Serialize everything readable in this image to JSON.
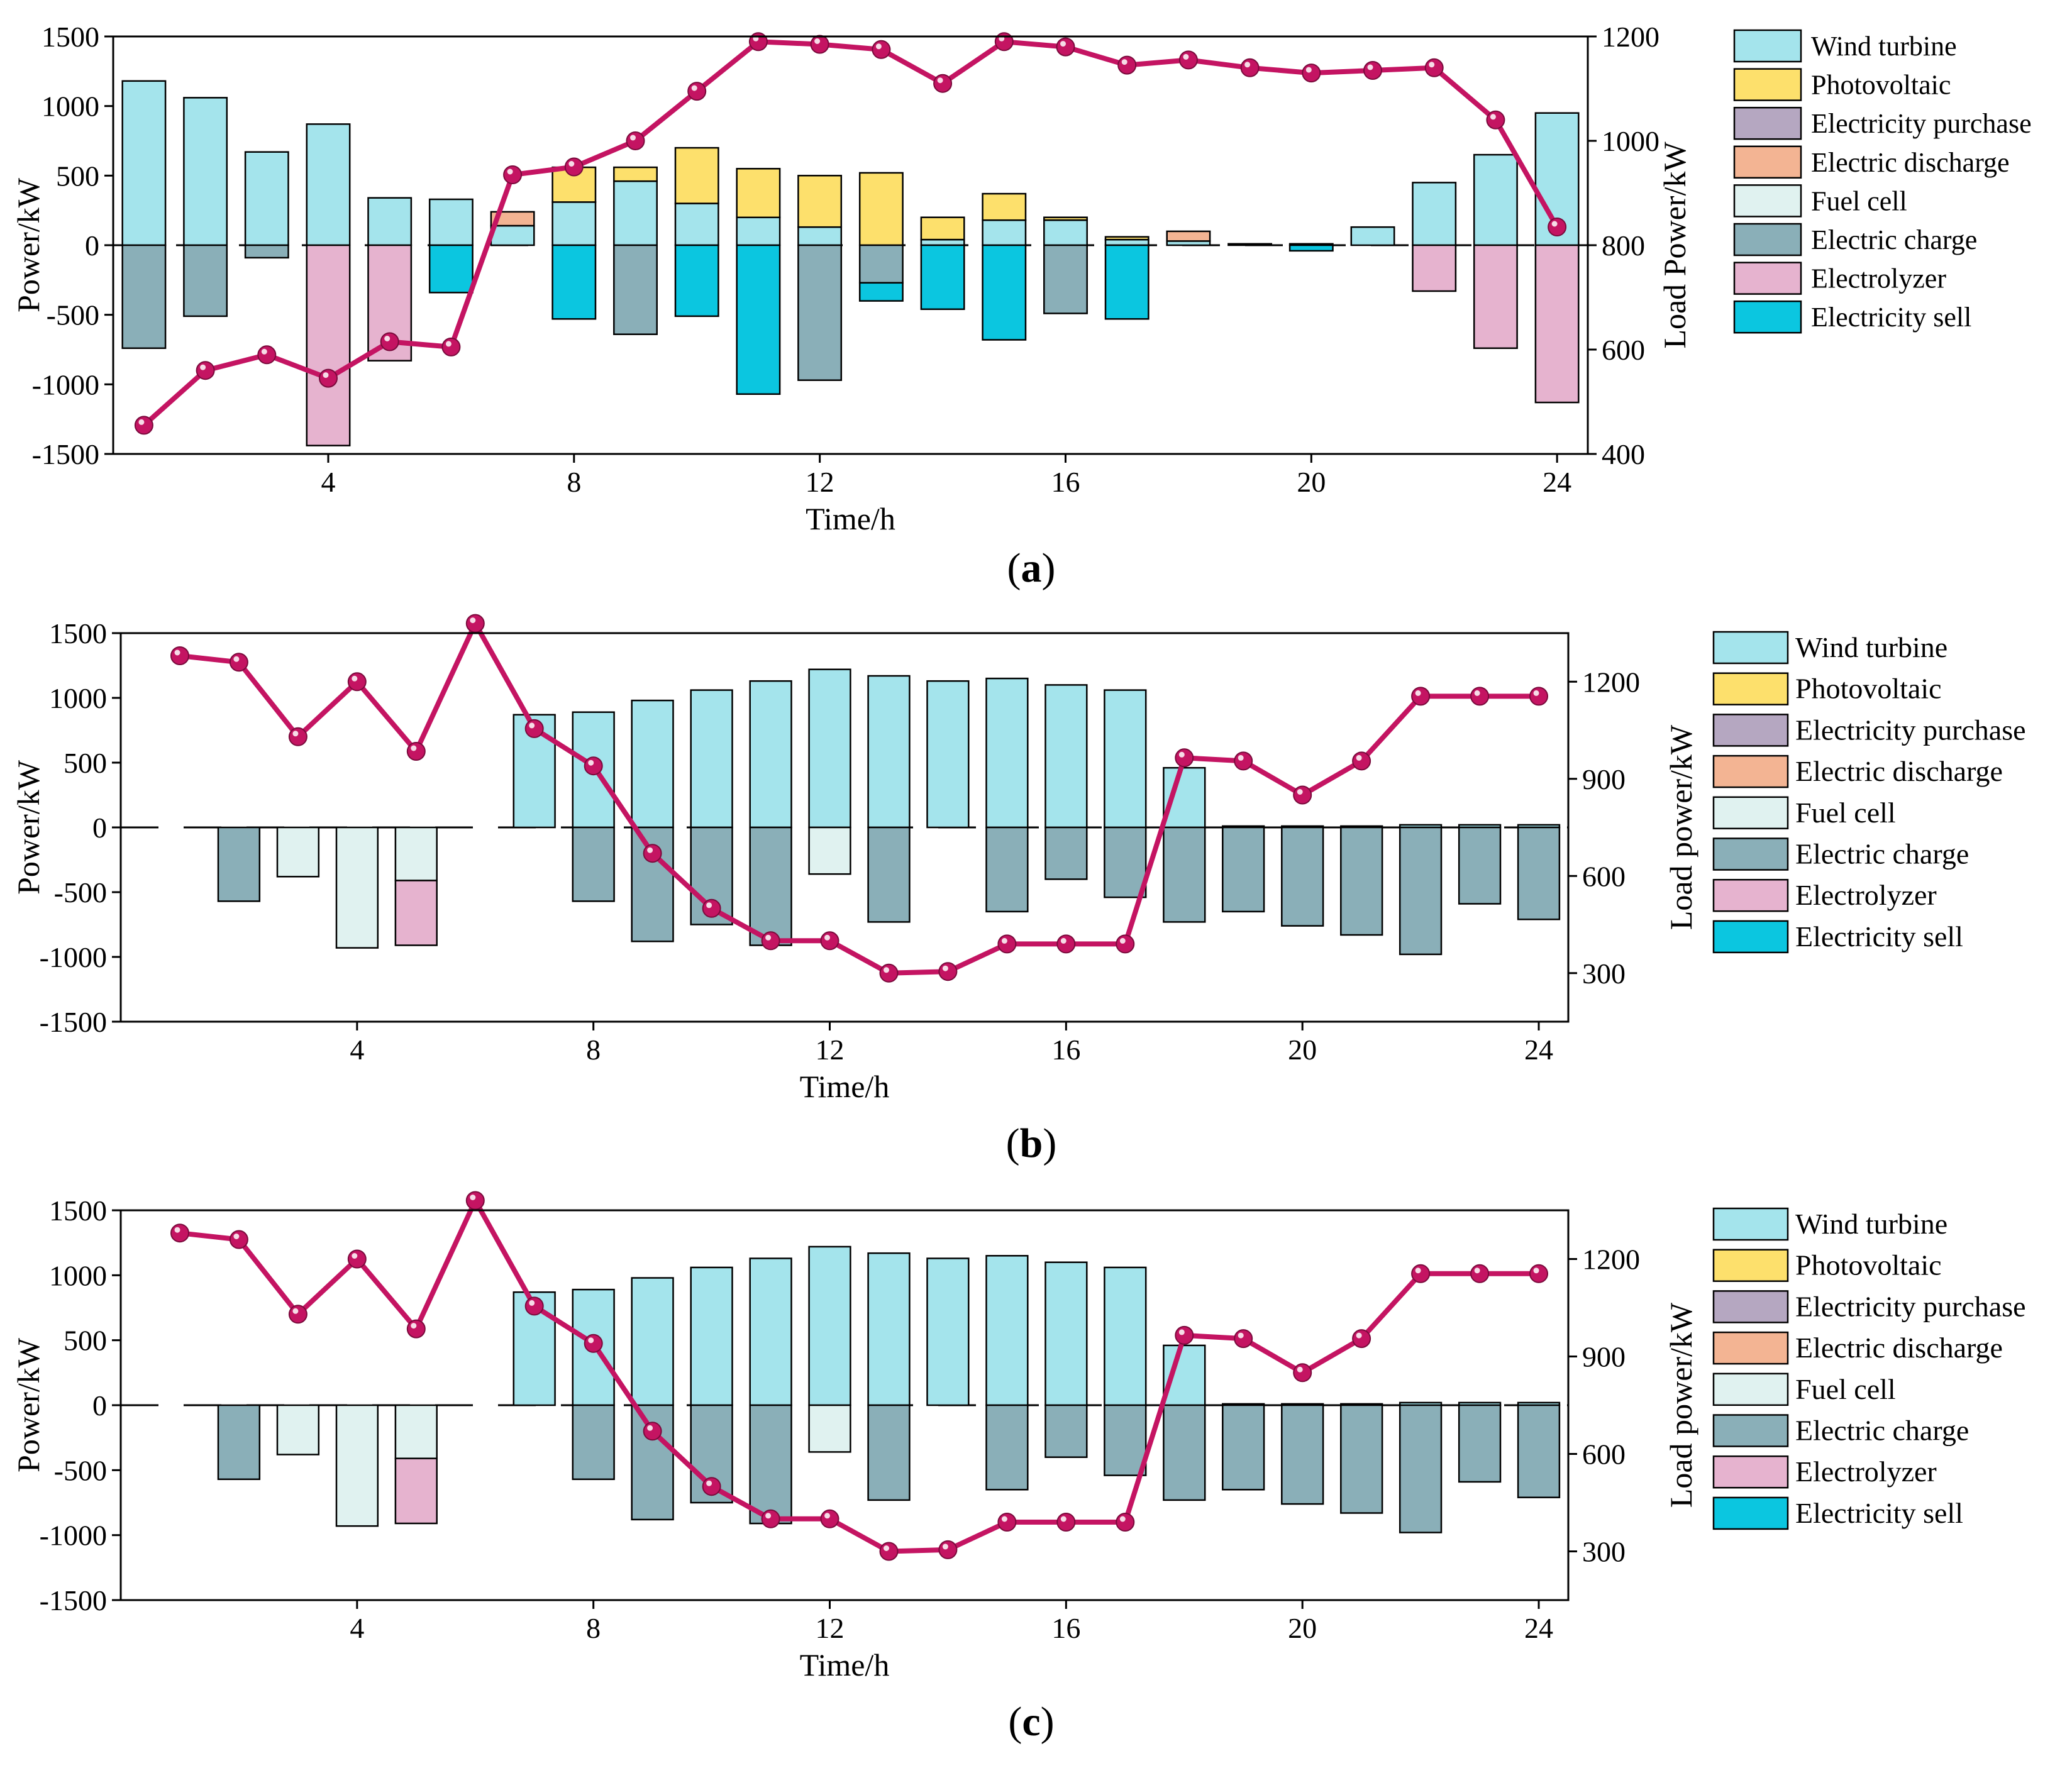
{
  "colors": {
    "wind": "#a4e4ec",
    "pv": "#fde06c",
    "purchase": "#b5a7c1",
    "discharge": "#f3b493",
    "fuel_cell": "#e0f2f0",
    "charge": "#8aafb8",
    "electrolyzer": "#e6b3cf",
    "sell": "#0bc6e0",
    "load_line": "#c41462"
  },
  "chart_data": [
    {
      "type": "bar",
      "panel_label": "a",
      "bars": "stacked",
      "xlabel": "Time/h",
      "ylabel": "Power/kW",
      "y2label": "Load Power/kW",
      "xticks": [
        4,
        8,
        12,
        16,
        20,
        24
      ],
      "xlim": [
        0.5,
        24.5
      ],
      "ylim": [
        -1500,
        1500
      ],
      "yticks": [
        -1500,
        -1000,
        -500,
        0,
        500,
        1000,
        1500
      ],
      "y2lim": [
        400,
        1200
      ],
      "y2ticks": [
        400,
        600,
        800,
        1000,
        1200
      ],
      "grid": false,
      "legend_position": "right",
      "legend": [
        "Wind turbine",
        "Photovoltaic",
        "Electricity purchase",
        "Electric discharge",
        "Fuel cell",
        "Electric charge",
        "Electrolyzer",
        "Electricity sell"
      ],
      "x": [
        1,
        2,
        3,
        4,
        5,
        6,
        7,
        8,
        9,
        10,
        11,
        12,
        13,
        14,
        15,
        16,
        17,
        18,
        19,
        20,
        21,
        22,
        23,
        24
      ],
      "series": [
        {
          "name": "Wind turbine",
          "key": "wind",
          "values": [
            1180,
            1060,
            670,
            870,
            340,
            330,
            140,
            310,
            460,
            300,
            200,
            130,
            0,
            40,
            180,
            180,
            40,
            30,
            10,
            10,
            130,
            450,
            650,
            950
          ]
        },
        {
          "name": "Photovoltaic",
          "key": "pv",
          "values": [
            0,
            0,
            0,
            0,
            0,
            0,
            0,
            250,
            100,
            400,
            350,
            370,
            520,
            160,
            190,
            20,
            20,
            0,
            0,
            0,
            0,
            0,
            0,
            0
          ]
        },
        {
          "name": "Electricity purchase",
          "key": "purchase",
          "values": [
            0,
            0,
            0,
            0,
            0,
            0,
            0,
            0,
            0,
            0,
            0,
            0,
            0,
            0,
            0,
            0,
            0,
            0,
            0,
            0,
            0,
            0,
            0,
            0
          ]
        },
        {
          "name": "Electric discharge",
          "key": "discharge",
          "values": [
            0,
            0,
            0,
            0,
            0,
            0,
            100,
            0,
            0,
            0,
            0,
            0,
            0,
            0,
            0,
            0,
            0,
            70,
            0,
            0,
            0,
            0,
            0,
            0
          ]
        },
        {
          "name": "Fuel cell",
          "key": "fuel_cell",
          "values": [
            0,
            0,
            0,
            0,
            0,
            0,
            0,
            0,
            0,
            0,
            0,
            0,
            0,
            0,
            0,
            0,
            0,
            0,
            0,
            0,
            0,
            0,
            0,
            0
          ]
        },
        {
          "name": "Electric charge",
          "key": "charge",
          "values": [
            -740,
            -510,
            -90,
            0,
            0,
            0,
            0,
            0,
            -640,
            0,
            0,
            -970,
            -270,
            0,
            0,
            -490,
            0,
            0,
            0,
            0,
            0,
            0,
            0,
            0
          ]
        },
        {
          "name": "Electrolyzer",
          "key": "electrolyzer",
          "values": [
            0,
            0,
            0,
            -1440,
            -830,
            0,
            0,
            0,
            0,
            0,
            0,
            0,
            0,
            0,
            0,
            0,
            0,
            0,
            0,
            0,
            0,
            -330,
            -740,
            -1130
          ]
        },
        {
          "name": "Electricity sell",
          "key": "sell",
          "values": [
            0,
            0,
            0,
            0,
            0,
            -340,
            0,
            -530,
            0,
            -510,
            -1070,
            0,
            -130,
            -460,
            -680,
            0,
            -530,
            0,
            0,
            -40,
            0,
            0,
            0,
            0
          ]
        }
      ],
      "line_series": {
        "axis": "y2",
        "key": "load_line",
        "values": [
          455,
          560,
          590,
          545,
          615,
          605,
          935,
          950,
          1000,
          1095,
          1190,
          1185,
          1175,
          1110,
          1190,
          1180,
          1145,
          1155,
          1140,
          1130,
          1135,
          1140,
          1040,
          835
        ]
      }
    },
    {
      "type": "bar",
      "panel_label": "b",
      "bars": "stacked",
      "xlabel": "Time/h",
      "ylabel": "Power/kW",
      "y2label": "Load power/kW",
      "xticks": [
        4,
        8,
        12,
        16,
        20,
        24
      ],
      "xlim": [
        0,
        24.5
      ],
      "ylim": [
        -1500,
        1500
      ],
      "yticks": [
        -1500,
        -1000,
        -500,
        0,
        500,
        1000,
        1500
      ],
      "y2lim": [
        150,
        1350
      ],
      "y2ticks": [
        300,
        600,
        900,
        1200
      ],
      "grid": false,
      "legend_position": "right",
      "legend": [
        "Wind turbine",
        "Photovoltaic",
        "Electricity purchase",
        "Electric discharge",
        "Fuel cell",
        "Electric charge",
        "Electrolyzer",
        "Electricity sell"
      ],
      "x": [
        1,
        2,
        3,
        4,
        5,
        6,
        7,
        8,
        9,
        10,
        11,
        12,
        13,
        14,
        15,
        16,
        17,
        18,
        19,
        20,
        21,
        22,
        23,
        24
      ],
      "series": [
        {
          "name": "Wind turbine",
          "key": "wind",
          "values": [
            0,
            0,
            0,
            0,
            0,
            0,
            870,
            890,
            980,
            1060,
            1130,
            1220,
            1170,
            1130,
            1150,
            1100,
            1060,
            460,
            10,
            10,
            10,
            20,
            20,
            20
          ]
        },
        {
          "name": "Photovoltaic",
          "key": "pv",
          "values": [
            0,
            0,
            0,
            0,
            0,
            0,
            0,
            0,
            0,
            0,
            0,
            0,
            0,
            0,
            0,
            0,
            0,
            0,
            0,
            0,
            0,
            0,
            0,
            0
          ]
        },
        {
          "name": "Electricity purchase",
          "key": "purchase",
          "values": [
            0,
            0,
            0,
            0,
            0,
            0,
            0,
            0,
            0,
            0,
            0,
            0,
            0,
            0,
            0,
            0,
            0,
            0,
            0,
            0,
            0,
            0,
            0,
            0
          ]
        },
        {
          "name": "Electric discharge",
          "key": "discharge",
          "values": [
            0,
            0,
            0,
            0,
            0,
            0,
            0,
            0,
            0,
            0,
            0,
            0,
            0,
            0,
            0,
            0,
            0,
            0,
            0,
            0,
            0,
            0,
            0,
            0
          ]
        },
        {
          "name": "Fuel cell",
          "key": "fuel_cell",
          "values": [
            0,
            0,
            -380,
            -930,
            -410,
            0,
            0,
            0,
            0,
            0,
            0,
            -360,
            0,
            0,
            0,
            0,
            0,
            0,
            0,
            0,
            0,
            0,
            0,
            0
          ]
        },
        {
          "name": "Electric charge",
          "key": "charge",
          "values": [
            0,
            -570,
            0,
            0,
            0,
            0,
            0,
            -570,
            -880,
            -750,
            -910,
            0,
            -730,
            0,
            -650,
            -400,
            -540,
            -730,
            -650,
            -760,
            -830,
            -980,
            -590,
            -710
          ]
        },
        {
          "name": "Electrolyzer",
          "key": "electrolyzer",
          "values": [
            0,
            0,
            0,
            0,
            -500,
            0,
            0,
            0,
            0,
            0,
            0,
            0,
            0,
            0,
            0,
            0,
            0,
            0,
            0,
            0,
            0,
            0,
            0,
            0
          ]
        },
        {
          "name": "Electricity sell",
          "key": "sell",
          "values": [
            0,
            0,
            0,
            0,
            0,
            0,
            0,
            0,
            0,
            0,
            0,
            0,
            0,
            0,
            0,
            0,
            0,
            0,
            0,
            0,
            0,
            0,
            0,
            0
          ]
        }
      ],
      "line_series": {
        "axis": "y2",
        "key": "load_line",
        "values": [
          1280,
          1260,
          1030,
          1200,
          985,
          1380,
          1055,
          940,
          670,
          500,
          400,
          400,
          300,
          305,
          390,
          390,
          390,
          965,
          955,
          850,
          955,
          1155,
          1155,
          1155
        ]
      }
    },
    {
      "type": "bar",
      "panel_label": "c",
      "bars": "stacked",
      "xlabel": "Time/h",
      "ylabel": "Power/kW",
      "y2label": "Load power/kW",
      "xticks": [
        4,
        8,
        12,
        16,
        20,
        24
      ],
      "xlim": [
        0,
        24.5
      ],
      "ylim": [
        -1500,
        1500
      ],
      "yticks": [
        -1500,
        -1000,
        -500,
        0,
        500,
        1000,
        1500
      ],
      "y2lim": [
        150,
        1350
      ],
      "y2ticks": [
        300,
        600,
        900,
        1200
      ],
      "grid": false,
      "legend_position": "right",
      "legend": [
        "Wind turbine",
        "Photovoltaic",
        "Electricity purchase",
        "Electric discharge",
        "Fuel cell",
        "Electric charge",
        "Electrolyzer",
        "Electricity sell"
      ],
      "x": [
        1,
        2,
        3,
        4,
        5,
        6,
        7,
        8,
        9,
        10,
        11,
        12,
        13,
        14,
        15,
        16,
        17,
        18,
        19,
        20,
        21,
        22,
        23,
        24
      ],
      "series": [
        {
          "name": "Wind turbine",
          "key": "wind",
          "values": [
            0,
            0,
            0,
            0,
            0,
            0,
            870,
            890,
            980,
            1060,
            1130,
            1220,
            1170,
            1130,
            1150,
            1100,
            1060,
            460,
            10,
            10,
            10,
            20,
            20,
            20
          ]
        },
        {
          "name": "Photovoltaic",
          "key": "pv",
          "values": [
            0,
            0,
            0,
            0,
            0,
            0,
            0,
            0,
            0,
            0,
            0,
            0,
            0,
            0,
            0,
            0,
            0,
            0,
            0,
            0,
            0,
            0,
            0,
            0
          ]
        },
        {
          "name": "Electricity purchase",
          "key": "purchase",
          "values": [
            0,
            0,
            0,
            0,
            0,
            0,
            0,
            0,
            0,
            0,
            0,
            0,
            0,
            0,
            0,
            0,
            0,
            0,
            0,
            0,
            0,
            0,
            0,
            0
          ]
        },
        {
          "name": "Electric discharge",
          "key": "discharge",
          "values": [
            0,
            0,
            0,
            0,
            0,
            0,
            0,
            0,
            0,
            0,
            0,
            0,
            0,
            0,
            0,
            0,
            0,
            0,
            0,
            0,
            0,
            0,
            0,
            0
          ]
        },
        {
          "name": "Fuel cell",
          "key": "fuel_cell",
          "values": [
            0,
            0,
            -380,
            -930,
            -410,
            0,
            0,
            0,
            0,
            0,
            0,
            -360,
            0,
            0,
            0,
            0,
            0,
            0,
            0,
            0,
            0,
            0,
            0,
            0
          ]
        },
        {
          "name": "Electric charge",
          "key": "charge",
          "values": [
            0,
            -570,
            0,
            0,
            0,
            0,
            0,
            -570,
            -880,
            -750,
            -910,
            0,
            -730,
            0,
            -650,
            -400,
            -540,
            -730,
            -650,
            -760,
            -830,
            -980,
            -590,
            -710
          ]
        },
        {
          "name": "Electrolyzer",
          "key": "electrolyzer",
          "values": [
            0,
            0,
            0,
            0,
            -500,
            0,
            0,
            0,
            0,
            0,
            0,
            0,
            0,
            0,
            0,
            0,
            0,
            0,
            0,
            0,
            0,
            0,
            0,
            0
          ]
        },
        {
          "name": "Electricity sell",
          "key": "sell",
          "values": [
            0,
            0,
            0,
            0,
            0,
            0,
            0,
            0,
            0,
            0,
            0,
            0,
            0,
            0,
            0,
            0,
            0,
            0,
            0,
            0,
            0,
            0,
            0,
            0
          ]
        }
      ],
      "line_series": {
        "axis": "y2",
        "key": "load_line",
        "values": [
          1280,
          1260,
          1030,
          1200,
          985,
          1380,
          1055,
          940,
          670,
          500,
          400,
          400,
          300,
          305,
          390,
          390,
          390,
          965,
          955,
          850,
          955,
          1155,
          1155,
          1155
        ]
      }
    }
  ]
}
